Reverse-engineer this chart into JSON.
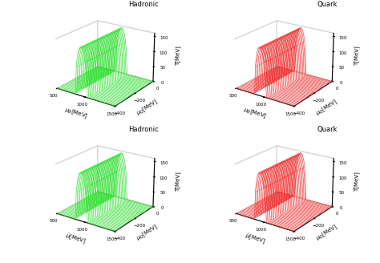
{
  "panels": [
    {
      "title": "Hadronic",
      "color": "#22dd22",
      "row": 0,
      "col": 0,
      "xlabel": "$\\mu_B$[MeV]",
      "ylabel": "$\\mu_Q$[MeV]",
      "zlabel": "T[MeV]"
    },
    {
      "title": "Quark",
      "color": "#ee2222",
      "row": 0,
      "col": 1,
      "xlabel": "$\\mu_B$[MeV]",
      "ylabel": "$\\mu_Q$[MeV]",
      "zlabel": "T[MeV]"
    },
    {
      "title": "Hadronic",
      "color": "#22dd22",
      "row": 1,
      "col": 0,
      "xlabel": "$\\bar{\\mu}$[MeV]",
      "ylabel": "$\\mu_Q$[MeV]",
      "zlabel": "T[MeV]"
    },
    {
      "title": "Quark",
      "color": "#ee2222",
      "row": 1,
      "col": 1,
      "xlabel": "$\\bar{\\mu}$[MeV]",
      "ylabel": "$\\mu_Q$[MeV]",
      "zlabel": "T[MeV]"
    }
  ],
  "muB_min": 500,
  "muB_max": 1500,
  "muQ_min": -400,
  "muQ_max": 0,
  "T_max": 160,
  "T_c0": 155.0,
  "kappa": 0.0001,
  "mu0": 938.0,
  "n_muB": 60,
  "n_muQ": 35,
  "elev": 22,
  "azim": -55,
  "linewidth": 0.4,
  "alpha": 1.0,
  "title_fontsize": 6,
  "label_fontsize": 5,
  "tick_fontsize": 4
}
